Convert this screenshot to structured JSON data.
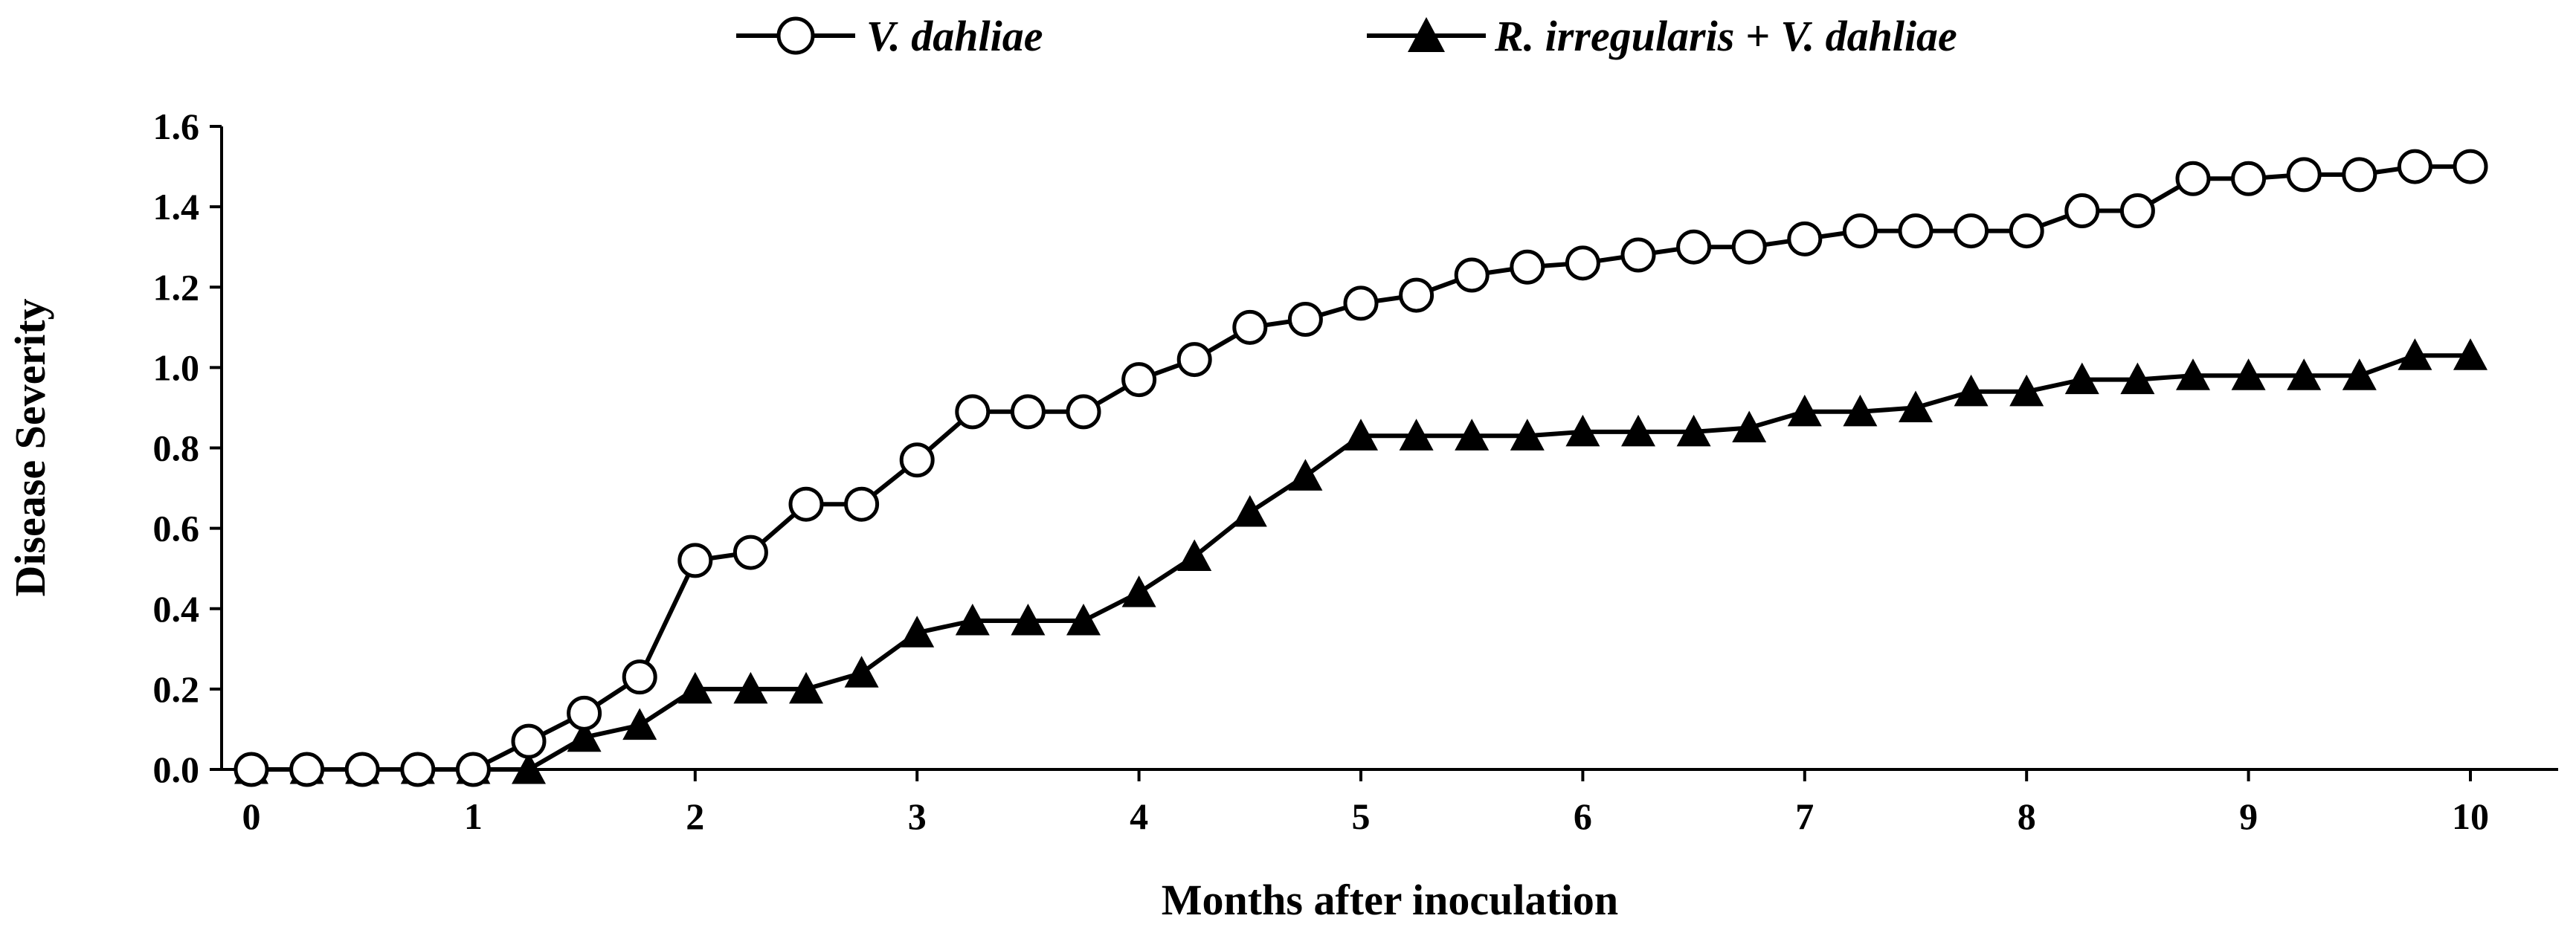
{
  "chart_data": {
    "type": "line",
    "title": "",
    "xlabel": "Months after inoculation",
    "ylabel": "Disease Severity",
    "xlim": [
      0,
      10.3
    ],
    "ylim": [
      0,
      1.6
    ],
    "xticks": [
      "0",
      "1",
      "2",
      "3",
      "4",
      "5",
      "6",
      "7",
      "8",
      "9",
      "10"
    ],
    "yticks": [
      "0.0",
      "0.2",
      "0.4",
      "0.6",
      "0.8",
      "1.0",
      "1.2",
      "1.4",
      "1.6"
    ],
    "grid": false,
    "legend_position": "top-center",
    "x": [
      0,
      0.25,
      0.5,
      0.75,
      1,
      1.25,
      1.5,
      1.75,
      2,
      2.25,
      2.5,
      2.75,
      3,
      3.25,
      3.5,
      3.75,
      4,
      4.25,
      4.5,
      4.75,
      5,
      5.25,
      5.5,
      5.75,
      6,
      6.25,
      6.5,
      6.75,
      7,
      7.25,
      7.5,
      7.75,
      8,
      8.25,
      8.5,
      8.75,
      9,
      9.25,
      9.5,
      9.75,
      10
    ],
    "series": [
      {
        "name": "V. dahliae",
        "marker": "open-circle",
        "color": "#000000",
        "values": [
          0,
          0,
          0,
          0,
          0,
          0.07,
          0.14,
          0.23,
          0.52,
          0.54,
          0.66,
          0.66,
          0.77,
          0.89,
          0.89,
          0.89,
          0.97,
          1.02,
          1.1,
          1.12,
          1.16,
          1.18,
          1.23,
          1.25,
          1.26,
          1.28,
          1.3,
          1.3,
          1.32,
          1.34,
          1.34,
          1.34,
          1.34,
          1.39,
          1.39,
          1.47,
          1.47,
          1.48,
          1.48,
          1.5,
          1.5
        ]
      },
      {
        "name": "R. irregularis + V. dahliae",
        "marker": "filled-triangle",
        "color": "#000000",
        "values": [
          0,
          0,
          0,
          0,
          0,
          0,
          0.08,
          0.11,
          0.2,
          0.2,
          0.2,
          0.24,
          0.34,
          0.37,
          0.37,
          0.37,
          0.44,
          0.53,
          0.64,
          0.73,
          0.83,
          0.83,
          0.83,
          0.83,
          0.84,
          0.84,
          0.84,
          0.85,
          0.89,
          0.89,
          0.9,
          0.94,
          0.94,
          0.97,
          0.97,
          0.98,
          0.98,
          0.98,
          0.98,
          1.03,
          1.03
        ]
      }
    ]
  }
}
